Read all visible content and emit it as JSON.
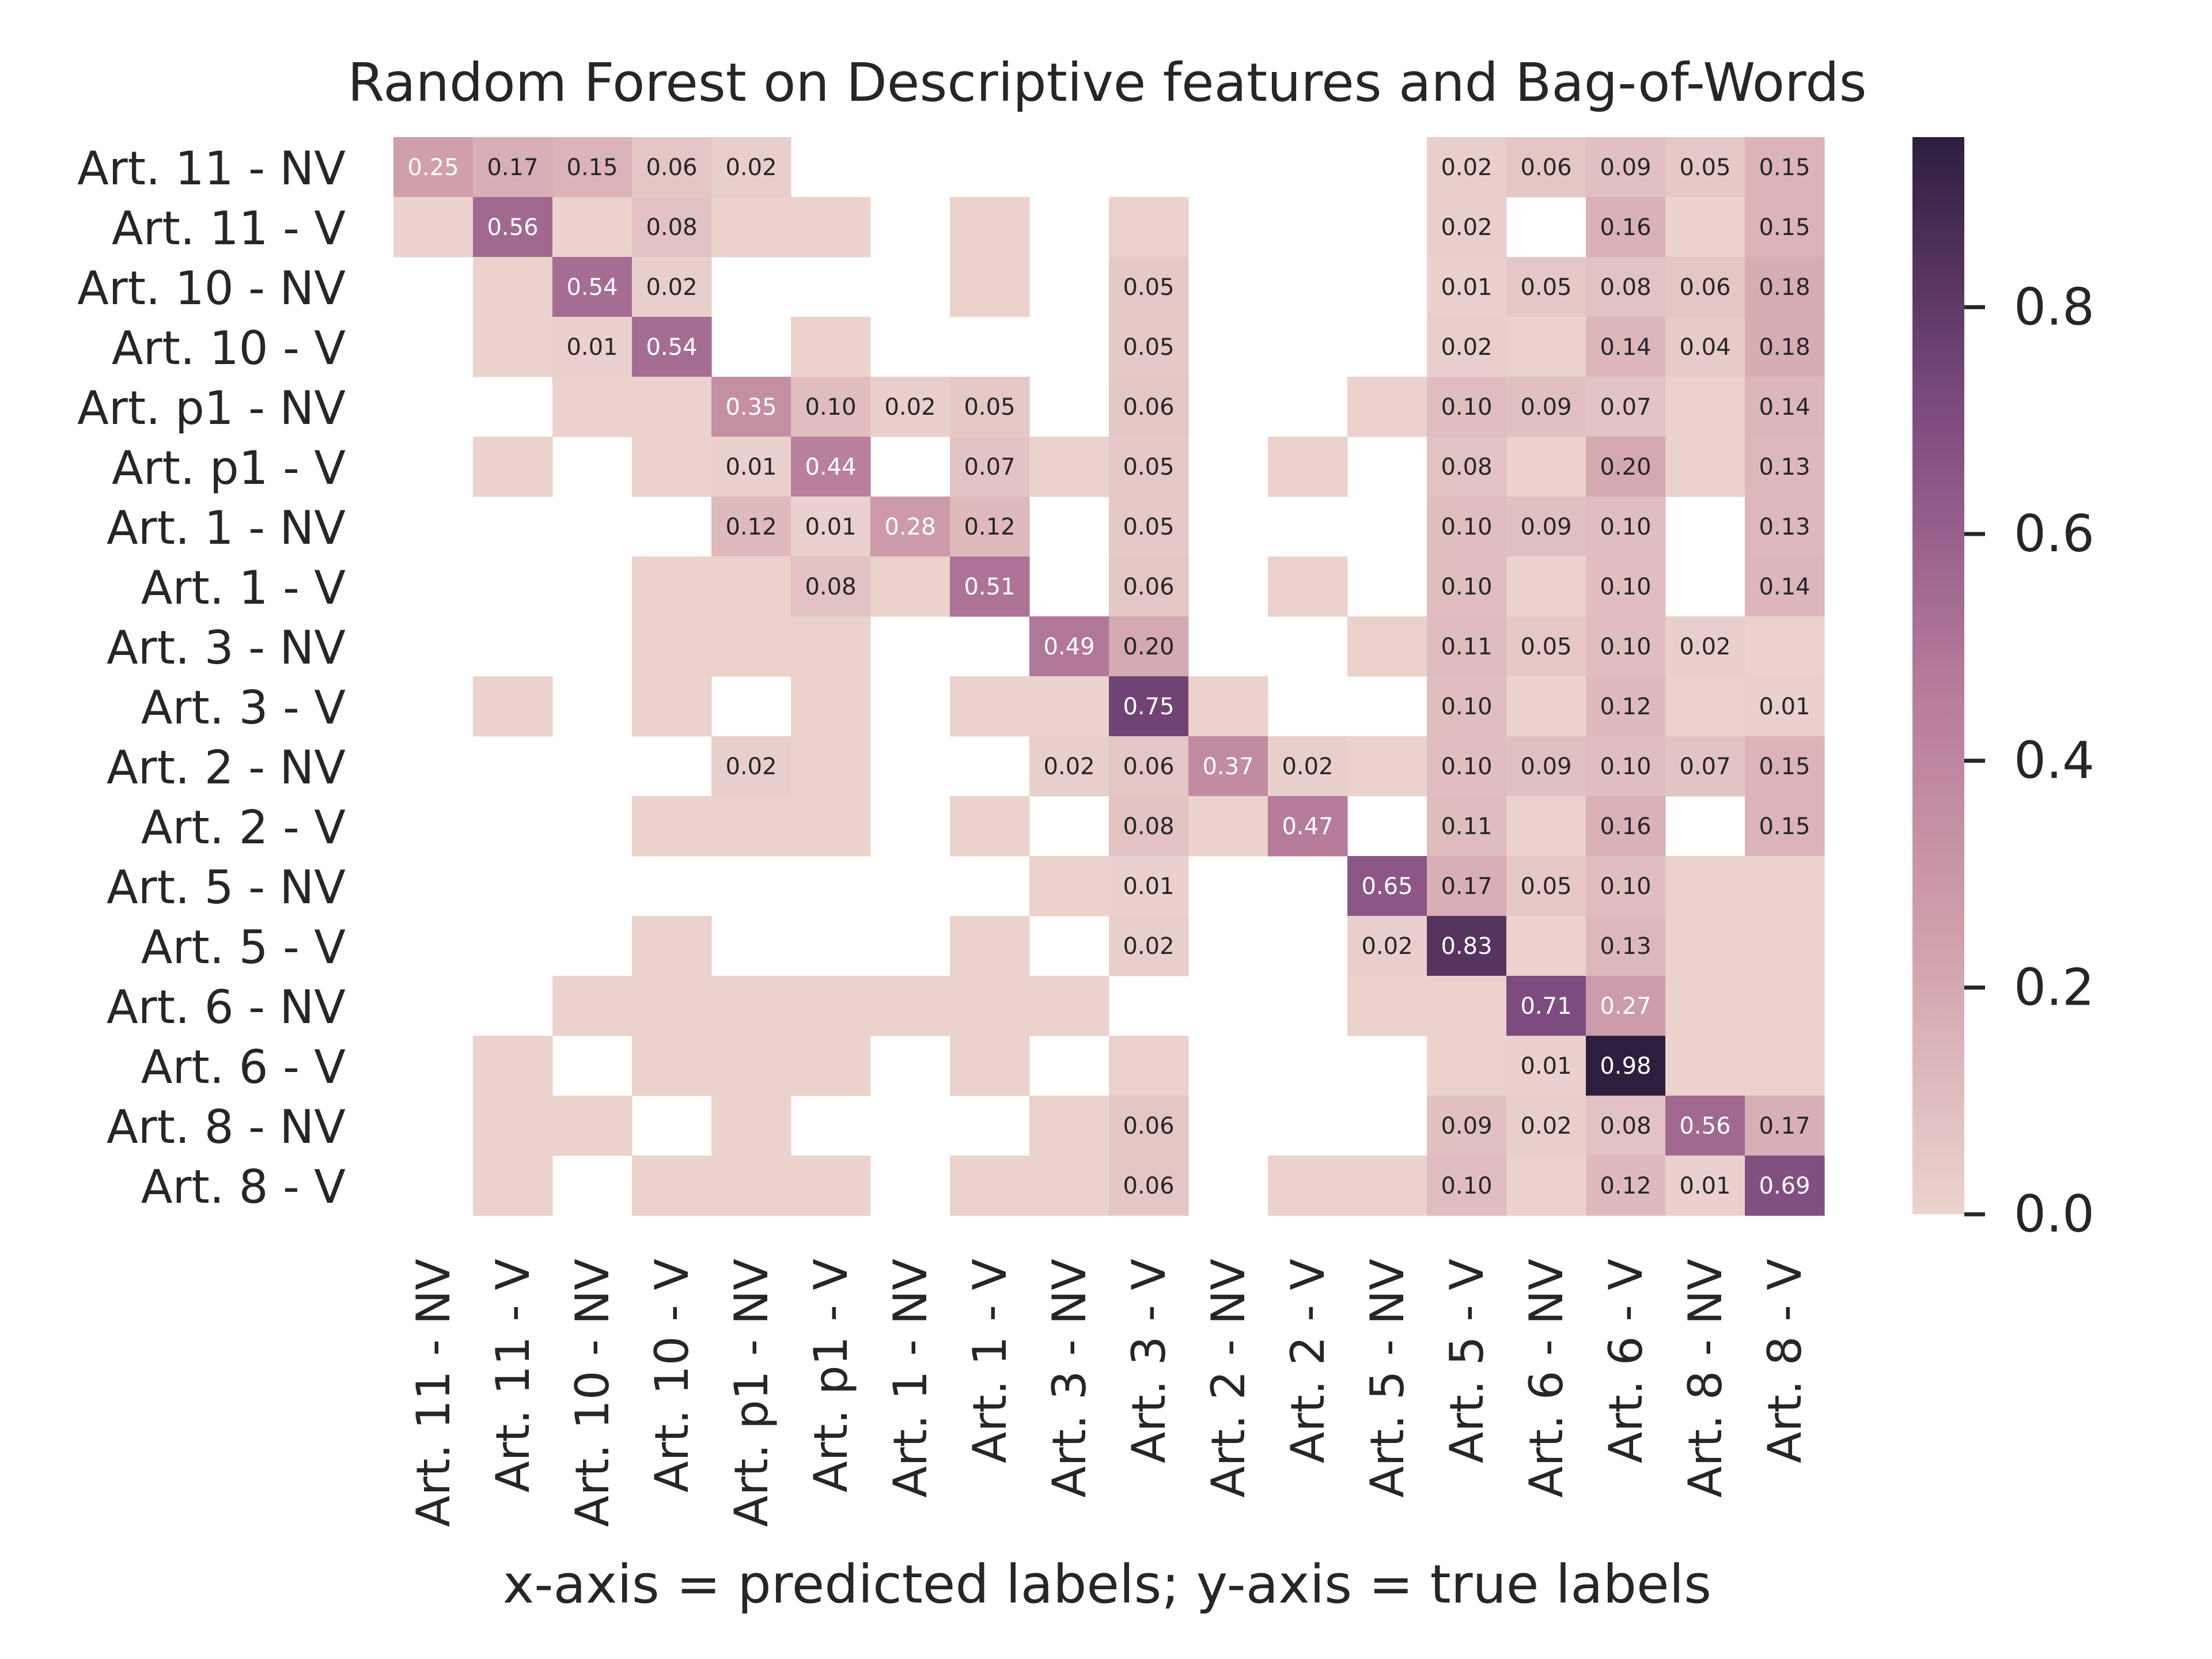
{
  "chart_data": {
    "type": "heatmap",
    "title": "Random Forest on Descriptive features and Bag-of-Words",
    "xlabel": "x-axis = predicted labels; y-axis = true labels",
    "ylabel": "",
    "labels": [
      "Art. 11 - NV",
      "Art. 11 - V",
      "Art. 10 - NV",
      "Art. 10 - V",
      "Art. p1 - NV",
      "Art. p1 - V",
      "Art. 1 - NV",
      "Art. 1 - V",
      "Art. 3 - NV",
      "Art. 3 - V",
      "Art. 2 - NV",
      "Art. 2 - V",
      "Art. 5 - NV",
      "Art. 5 - V",
      "Art. 6 - NV",
      "Art. 6 - V",
      "Art. 8 - NV",
      "Art. 8 - V"
    ],
    "x_categories": [
      "Art. 11 - NV",
      "Art. 11 - V",
      "Art. 10 - NV",
      "Art. 10 - V",
      "Art. p1 - NV",
      "Art. p1 - V",
      "Art. 1 - NV",
      "Art. 1 - V",
      "Art. 3 - NV",
      "Art. 3 - V",
      "Art. 2 - NV",
      "Art. 2 - V",
      "Art. 5 - NV",
      "Art. 5 - V",
      "Art. 6 - NV",
      "Art. 6 - V",
      "Art. 8 - NV",
      "Art. 8 - V"
    ],
    "y_categories": [
      "Art. 11 - NV",
      "Art. 11 - V",
      "Art. 10 - NV",
      "Art. 10 - V",
      "Art. p1 - NV",
      "Art. p1 - V",
      "Art. 1 - NV",
      "Art. 1 - V",
      "Art. 3 - NV",
      "Art. 3 - V",
      "Art. 2 - NV",
      "Art. 2 - V",
      "Art. 5 - NV",
      "Art. 5 - V",
      "Art. 6 - NV",
      "Art. 6 - V",
      "Art. 8 - NV",
      "Art. 8 - V"
    ],
    "values": [
      [
        0.25,
        0.17,
        0.15,
        0.06,
        0.02,
        null,
        null,
        null,
        null,
        null,
        null,
        null,
        null,
        0.02,
        0.06,
        0.09,
        0.05,
        0.15
      ],
      [
        0.004,
        0.56,
        0.004,
        0.08,
        0.004,
        0.004,
        null,
        0.004,
        null,
        0.004,
        null,
        null,
        null,
        0.02,
        null,
        0.16,
        0.004,
        0.15
      ],
      [
        null,
        0.004,
        0.54,
        0.02,
        null,
        null,
        null,
        0.004,
        null,
        0.05,
        null,
        null,
        null,
        0.01,
        0.05,
        0.08,
        0.06,
        0.18
      ],
      [
        null,
        0.004,
        0.01,
        0.54,
        null,
        0.004,
        null,
        null,
        null,
        0.05,
        null,
        null,
        null,
        0.02,
        0.004,
        0.14,
        0.04,
        0.18
      ],
      [
        null,
        null,
        0.004,
        0.004,
        0.35,
        0.1,
        0.02,
        0.05,
        null,
        0.06,
        null,
        null,
        0.004,
        0.1,
        0.09,
        0.07,
        0.004,
        0.14
      ],
      [
        null,
        0.004,
        null,
        0.004,
        0.01,
        0.44,
        null,
        0.07,
        0.004,
        0.05,
        null,
        0.004,
        null,
        0.08,
        0.004,
        0.2,
        0.004,
        0.13
      ],
      [
        null,
        null,
        null,
        null,
        0.12,
        0.01,
        0.28,
        0.12,
        null,
        0.05,
        null,
        null,
        null,
        0.1,
        0.09,
        0.1,
        null,
        0.13
      ],
      [
        null,
        null,
        null,
        0.004,
        0.004,
        0.08,
        0.004,
        0.51,
        null,
        0.06,
        null,
        0.004,
        null,
        0.1,
        0.004,
        0.1,
        null,
        0.14
      ],
      [
        null,
        null,
        null,
        0.004,
        0.004,
        0.004,
        null,
        null,
        0.49,
        0.2,
        null,
        null,
        0.004,
        0.11,
        0.05,
        0.1,
        0.02,
        0.004
      ],
      [
        null,
        0.004,
        null,
        0.004,
        null,
        0.004,
        null,
        0.004,
        0.004,
        0.75,
        0.004,
        null,
        null,
        0.1,
        0.004,
        0.12,
        0.004,
        0.01
      ],
      [
        null,
        null,
        null,
        null,
        0.02,
        0.004,
        null,
        null,
        0.02,
        0.06,
        0.37,
        0.02,
        0.004,
        0.1,
        0.09,
        0.1,
        0.07,
        0.15
      ],
      [
        null,
        null,
        null,
        0.004,
        0.004,
        0.004,
        null,
        0.004,
        null,
        0.08,
        0.004,
        0.47,
        null,
        0.11,
        0.004,
        0.16,
        null,
        0.15
      ],
      [
        null,
        null,
        null,
        null,
        null,
        null,
        null,
        null,
        0.004,
        0.01,
        null,
        null,
        0.65,
        0.17,
        0.05,
        0.1,
        0.004,
        0.004
      ],
      [
        null,
        null,
        null,
        0.004,
        null,
        null,
        null,
        0.004,
        null,
        0.02,
        null,
        null,
        0.02,
        0.83,
        0.004,
        0.13,
        0.004,
        0.004
      ],
      [
        null,
        null,
        0.004,
        0.004,
        0.004,
        0.004,
        0.004,
        0.004,
        0.004,
        null,
        null,
        null,
        0.004,
        0.004,
        0.71,
        0.27,
        0.004,
        0.004
      ],
      [
        null,
        0.004,
        null,
        0.004,
        0.004,
        0.004,
        null,
        0.004,
        null,
        0.004,
        null,
        null,
        null,
        0.004,
        0.01,
        0.98,
        0.004,
        0.004
      ],
      [
        null,
        0.004,
        0.004,
        null,
        0.004,
        null,
        null,
        null,
        0.004,
        0.06,
        null,
        null,
        null,
        0.09,
        0.02,
        0.08,
        0.56,
        0.17
      ],
      [
        null,
        0.004,
        null,
        0.004,
        0.004,
        0.004,
        null,
        0.004,
        0.004,
        0.06,
        null,
        0.004,
        0.004,
        0.1,
        0.004,
        0.12,
        0.01,
        0.69
      ]
    ],
    "annotation_threshold": 0.01,
    "colorbar": {
      "range": [
        0,
        0.95
      ],
      "ticks": [
        0.0,
        0.2,
        0.4,
        0.6,
        0.8
      ],
      "tick_labels": [
        "0.0",
        "0.2",
        "0.4",
        "0.6",
        "0.8"
      ]
    },
    "colors": {
      "low": "#ebd3ce",
      "mid1": "#d1a1ac",
      "mid2": "#b57a9a",
      "mid3": "#7d4a7f",
      "high": "#2d1e3e",
      "text_dark": "#262626",
      "text_light": "#ffffff"
    }
  }
}
